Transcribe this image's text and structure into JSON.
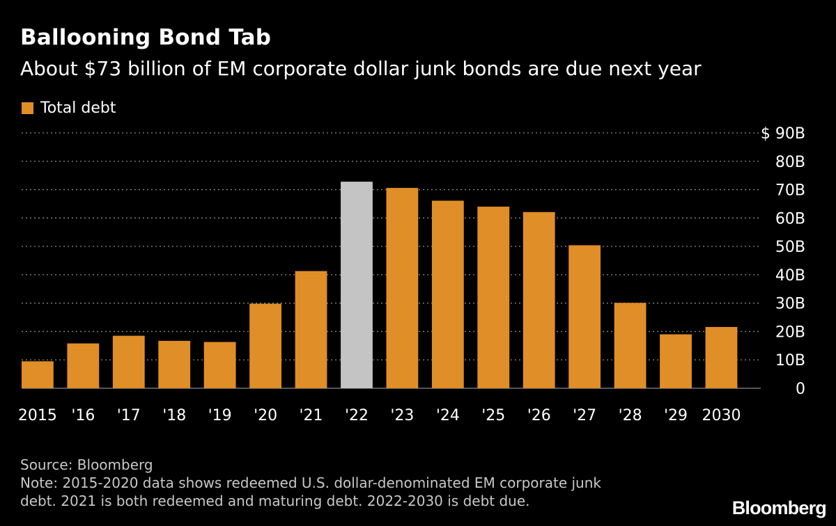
{
  "header": {
    "title": "Ballooning Bond Tab",
    "subtitle": "About $73 billion of EM corporate dollar junk bonds are due next year"
  },
  "legend": {
    "label": "Total debt",
    "color": "#e08e27"
  },
  "chart_data": {
    "type": "bar",
    "title": "Ballooning Bond Tab",
    "subtitle": "About $73 billion of EM corporate dollar junk bonds are due next year",
    "xlabel": "",
    "ylabel": "",
    "ylim": [
      0,
      90
    ],
    "yticks": [
      0,
      10,
      20,
      30,
      40,
      50,
      60,
      70,
      80,
      90
    ],
    "ytick_labels": [
      "0",
      "10B",
      "20B",
      "30B",
      "40B",
      "50B",
      "60B",
      "70B",
      "80B",
      "$ 90B"
    ],
    "grid": true,
    "legend_position": "top-left",
    "categories": [
      "2015",
      "'16",
      "'17",
      "'18",
      "'19",
      "'20",
      "'21",
      "'22",
      "'23",
      "'24",
      "'25",
      "'26",
      "'27",
      "'28",
      "'29",
      "2030"
    ],
    "series": [
      {
        "name": "Total debt",
        "values": [
          9.5,
          15.8,
          18.5,
          16.7,
          16.3,
          29.8,
          41.3,
          72.8,
          70.6,
          66.1,
          64.0,
          62.1,
          50.4,
          30.1,
          19.0,
          21.6
        ]
      }
    ],
    "highlight_index": 7,
    "bar_color": "#e08e27",
    "highlight_color": "#c4c4c4"
  },
  "footer": {
    "source": "Source: Bloomberg",
    "note_line1": "Note: 2015-2020 data shows redeemed U.S. dollar-denominated EM corporate junk",
    "note_line2": "debt. 2021 is both redeemed and maturing debt. 2022-2030 is debt due."
  },
  "brand": {
    "logo_text": "Bloomberg"
  }
}
